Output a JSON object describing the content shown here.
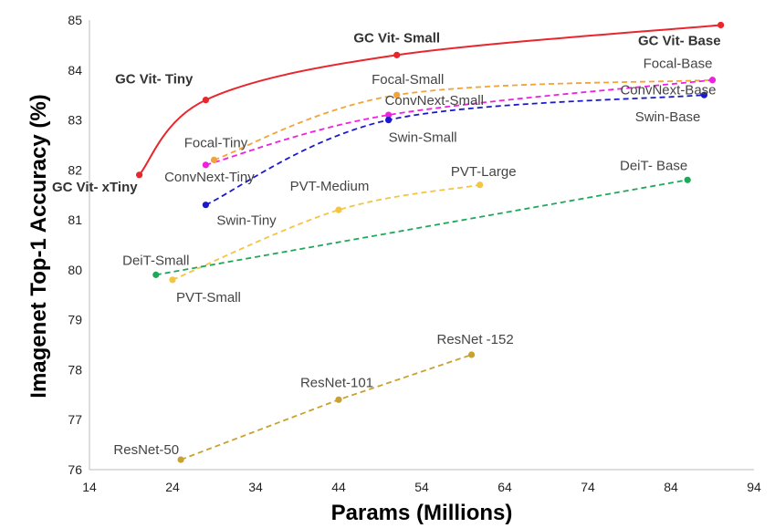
{
  "chart_data": {
    "type": "line",
    "title": "",
    "xlabel": "Params (Millions)",
    "ylabel": "Imagenet Top-1 Accuracy (%)",
    "xlim": [
      14,
      94
    ],
    "ylim": [
      76,
      85
    ],
    "xticks": [
      14,
      24,
      34,
      44,
      54,
      64,
      74,
      84,
      94
    ],
    "yticks": [
      76,
      77,
      78,
      79,
      80,
      81,
      82,
      83,
      84,
      85
    ],
    "grid": false,
    "series": [
      {
        "color": "#e8262d",
        "dash": "solid",
        "curve": true,
        "points": [
          {
            "x": 20,
            "y": 81.9,
            "label": "GC Vit- xTiny",
            "bold": true
          },
          {
            "x": 28,
            "y": 83.4,
            "label": "GC Vit- Tiny",
            "bold": true
          },
          {
            "x": 51,
            "y": 84.3,
            "label": "GC Vit- Small",
            "bold": true
          },
          {
            "x": 90,
            "y": 84.9,
            "label": "GC Vit- Base",
            "bold": true
          }
        ]
      },
      {
        "color": "#f2a33a",
        "dash": "dashed",
        "curve": true,
        "points": [
          {
            "x": 29,
            "y": 82.2,
            "label": "Focal-Tiny"
          },
          {
            "x": 51,
            "y": 83.5,
            "label": "Focal-Small"
          },
          {
            "x": 89,
            "y": 83.8,
            "label": "Focal-Base"
          }
        ]
      },
      {
        "color": "#f020e0",
        "dash": "dashed",
        "curve": true,
        "points": [
          {
            "x": 28,
            "y": 82.1,
            "label": "ConvNext-Tiny"
          },
          {
            "x": 50,
            "y": 83.1,
            "label": "ConvNext-Small"
          },
          {
            "x": 89,
            "y": 83.8,
            "label": "ConvNext-Base"
          }
        ]
      },
      {
        "color": "#1a1acc",
        "dash": "dashed",
        "curve": true,
        "points": [
          {
            "x": 28,
            "y": 81.3,
            "label": "Swin-Tiny"
          },
          {
            "x": 50,
            "y": 83.0,
            "label": "Swin-Small"
          },
          {
            "x": 88,
            "y": 83.5,
            "label": "Swin-Base"
          }
        ]
      },
      {
        "color": "#f4c542",
        "dash": "dashed",
        "curve": true,
        "points": [
          {
            "x": 24,
            "y": 79.8,
            "label": "PVT-Small"
          },
          {
            "x": 44,
            "y": 81.2,
            "label": "PVT-Medium"
          },
          {
            "x": 61,
            "y": 81.7,
            "label": "PVT-Large"
          }
        ]
      },
      {
        "color": "#1fa85a",
        "dash": "dashed",
        "curve": false,
        "points": [
          {
            "x": 22,
            "y": 79.9,
            "label": "DeiT-Small"
          },
          {
            "x": 86,
            "y": 81.8,
            "label": "DeiT- Base"
          }
        ]
      },
      {
        "color": "#c8a22e",
        "dash": "dashed",
        "curve": false,
        "points": [
          {
            "x": 25,
            "y": 76.2,
            "label": "ResNet-50"
          },
          {
            "x": 44,
            "y": 77.4,
            "label": "ResNet-101"
          },
          {
            "x": 60,
            "y": 78.3,
            "label": "ResNet -152"
          }
        ]
      }
    ]
  }
}
